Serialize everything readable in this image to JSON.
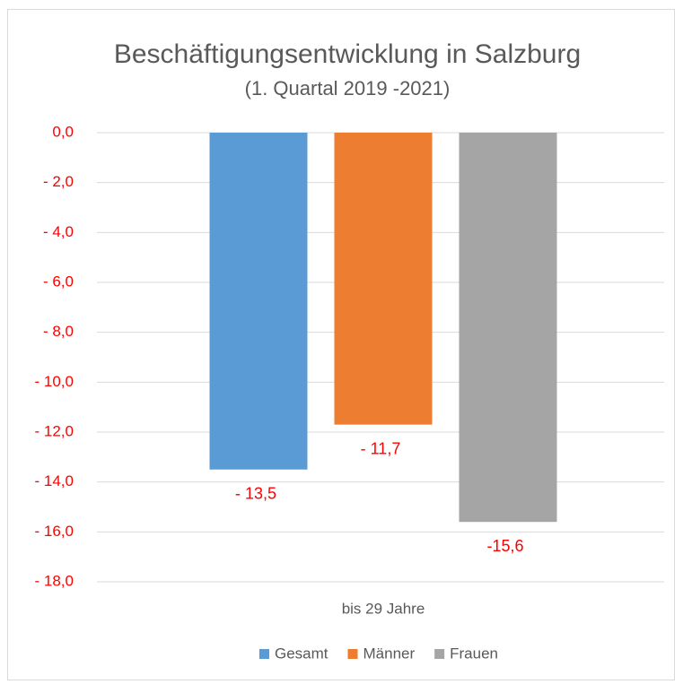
{
  "chart_data": {
    "type": "bar",
    "title": "Beschäftigungsentwicklung in Salzburg",
    "subtitle": "(1. Quartal 2019 -2021)",
    "categories": [
      "bis 29 Jahre"
    ],
    "series": [
      {
        "name": "Gesamt",
        "color": "#5b9bd5",
        "values": [
          -13.5
        ],
        "value_labels": [
          "- 13,5"
        ]
      },
      {
        "name": "Männer",
        "color": "#ed7d31",
        "values": [
          -11.7
        ],
        "value_labels": [
          "- 11,7"
        ]
      },
      {
        "name": "Frauen",
        "color": "#a5a5a5",
        "values": [
          -15.6
        ],
        "value_labels": [
          "-15,6"
        ]
      }
    ],
    "ylim": [
      -18,
      0
    ],
    "yticks": [
      {
        "value": 0,
        "label": "0,0"
      },
      {
        "value": -2,
        "label": "- 2,0"
      },
      {
        "value": -4,
        "label": "- 4,0"
      },
      {
        "value": -6,
        "label": "- 6,0"
      },
      {
        "value": -8,
        "label": "- 8,0"
      },
      {
        "value": -10,
        "label": "- 10,0"
      },
      {
        "value": -12,
        "label": "- 12,0"
      },
      {
        "value": -14,
        "label": "- 14,0"
      },
      {
        "value": -16,
        "label": "- 16,0"
      },
      {
        "value": -18,
        "label": "- 18,0"
      }
    ],
    "grid": true,
    "legend": "bottom"
  }
}
